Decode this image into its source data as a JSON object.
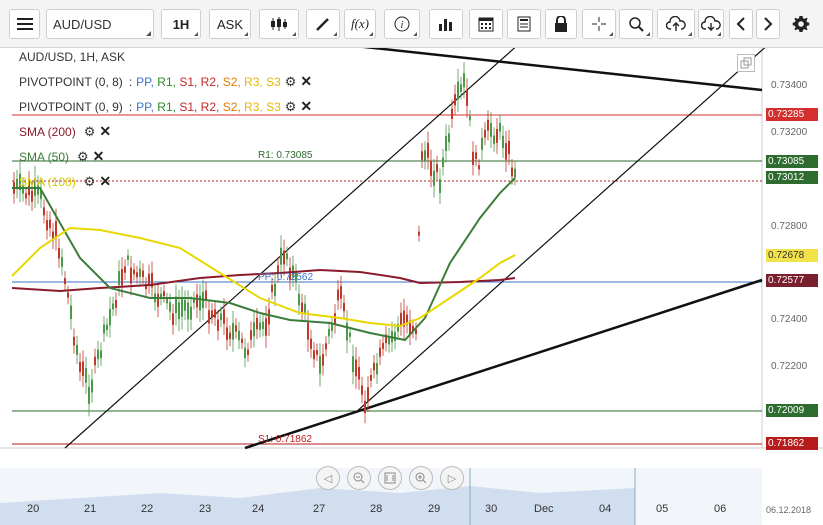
{
  "toolbar": {
    "symbol": "AUD/USD",
    "interval": "1H",
    "price_type": "ASK",
    "icons": [
      "menu-icon",
      "candlestick-icon",
      "pen-icon",
      "function-icon",
      "info-icon",
      "bar-chart-icon",
      "calendar-icon",
      "report-icon",
      "lock-icon",
      "crosshair-icon",
      "zoom-icon",
      "upload-icon",
      "download-icon",
      "chevron-left-icon",
      "chevron-right-icon",
      "gear-icon"
    ],
    "function_label": "f(x)"
  },
  "legend": {
    "title": "AUD/USD, 1H, ASK",
    "pivot1": {
      "name": "PIVOTPOINT (0, 8)",
      "items": [
        "PP",
        "R1",
        "S1",
        "R2",
        "S2",
        "R3",
        "S3"
      ]
    },
    "pivot2": {
      "name": "PIVOTPOINT (0, 9)",
      "items": [
        "PP",
        "R1",
        "S1",
        "R2",
        "S2",
        "R3",
        "S3"
      ]
    },
    "sma200": "SMA (200)",
    "sma50": "SMA (50)",
    "sma100": "SMA (100)",
    "pivot_item_colors": [
      "#3b73c7",
      "#2b8a2b",
      "#c62828",
      "#c62828",
      "#e07b00",
      "#e6b800",
      "#e6b800"
    ],
    "sma200_color": "#8b1a2b",
    "sma50_color": "#3a7d3a",
    "sma100_color": "#e0d000"
  },
  "price_axis": {
    "ticks": [
      "0.73400",
      "0.73200",
      "0.72800",
      "0.72400",
      "0.72200"
    ],
    "tags": [
      {
        "label": "0.73285",
        "color": "#d32f2f"
      },
      {
        "label": "0.73085",
        "color": "#2e6b2e"
      },
      {
        "label": "0.73012",
        "color": "#2e6b2e"
      },
      {
        "label": "0.72678",
        "color": "#f2e24a",
        "text_color": "#333"
      },
      {
        "label": "0.72577",
        "color": "#7a1f2e"
      },
      {
        "label": "0.72009",
        "color": "#2e6b2e"
      },
      {
        "label": "0.71862",
        "color": "#b71c1c"
      }
    ]
  },
  "chart_labels": {
    "r1": "R1: 0.73085",
    "s1": "S1: 0.71862",
    "pp": "PP: 0.72562"
  },
  "date_axis": {
    "labels": [
      "20",
      "21",
      "22",
      "23",
      "24",
      "27",
      "28",
      "29",
      "30",
      "Dec",
      "04",
      "05",
      "06"
    ],
    "end_date": "06.12.2018"
  }
}
